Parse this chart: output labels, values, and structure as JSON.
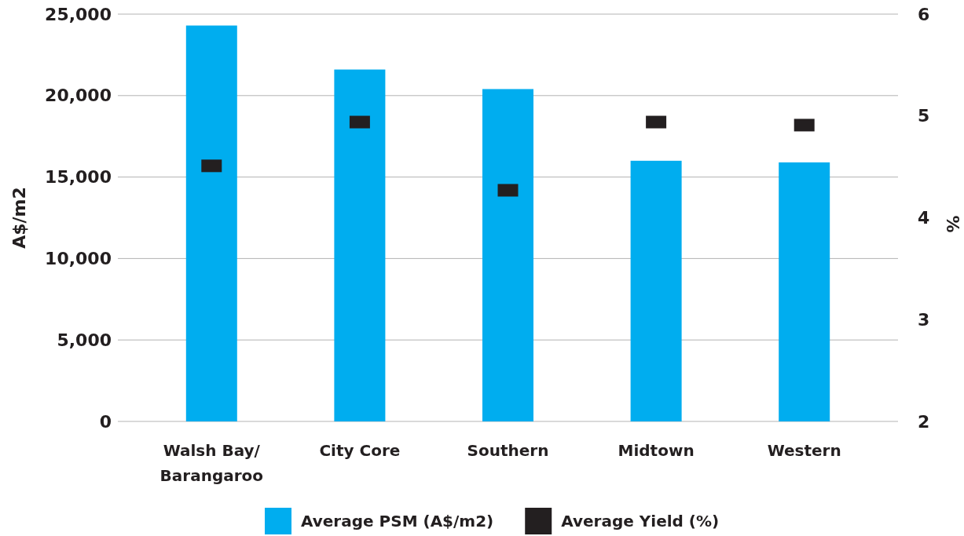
{
  "chart_data": {
    "type": "bar",
    "categories": [
      "Walsh Bay/\nBarangaroo",
      "City Core",
      "Southern",
      "Midtown",
      "Western"
    ],
    "ylabel": "A$/m2",
    "y2label": "%",
    "ylim": [
      0,
      25000
    ],
    "yticks": [
      {
        "value": 0,
        "label": "0"
      },
      {
        "value": 5000,
        "label": "5,000"
      },
      {
        "value": 10000,
        "label": "10,000"
      },
      {
        "value": 15000,
        "label": "15,000"
      },
      {
        "value": 20000,
        "label": "20,000"
      },
      {
        "value": 25000,
        "label": "25,000"
      }
    ],
    "y2lim": [
      2,
      6
    ],
    "y2ticks": [
      2,
      3,
      4,
      5,
      6
    ],
    "grid": "y",
    "legend": "bottom",
    "series": [
      {
        "name": "Average PSM (A$/m2)",
        "type": "bar",
        "color": "#00adef",
        "values": [
          24300,
          21600,
          20400,
          16000,
          15900
        ]
      },
      {
        "name": "Average Yield (%)",
        "type": "scatter",
        "axis": "y2",
        "color": "#231f20",
        "values": [
          4.51,
          4.94,
          4.27,
          4.94,
          4.91
        ]
      }
    ]
  }
}
